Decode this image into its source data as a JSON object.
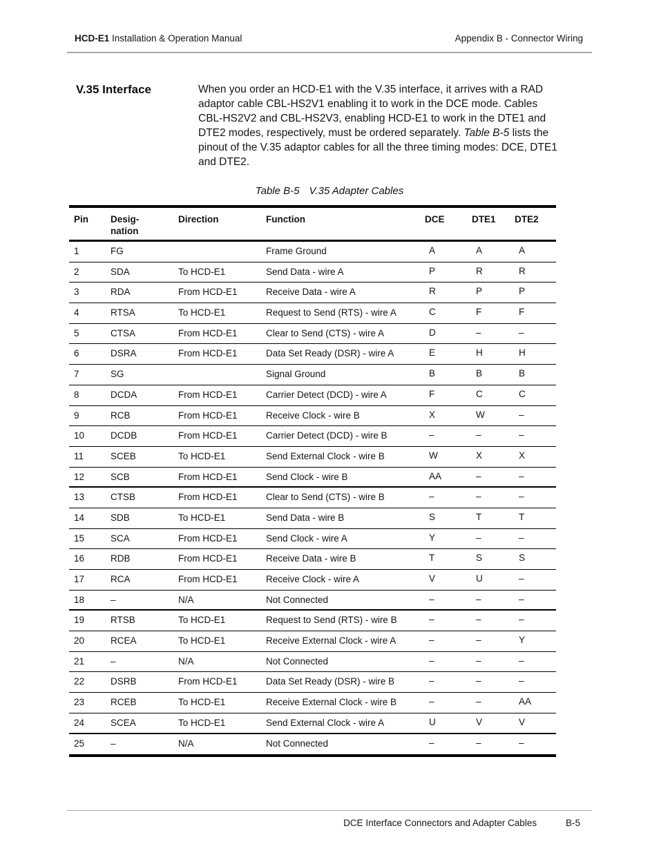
{
  "header": {
    "manual_title_bold": "HCD-E1",
    "manual_title_rest": " Installation & Operation Manual",
    "appendix_title": "Appendix B - Connector Wiring"
  },
  "section": {
    "title": "V.35 Interface",
    "paragraph_lines": [
      [
        {
          "text": "When you order an HCD-E1 with the V.35 interface, it arrives with a RAD"
        }
      ],
      [
        {
          "text": "adaptor cable CBL-HS2V1 enabling it to work in the DCE mode. Cables"
        }
      ],
      [
        {
          "text": "CBL-HS2V2 and CBL-HS2V3, enabling HCD-E1 to work in the DTE1 and"
        }
      ],
      [
        {
          "text": "DTE2 modes, respectively, must be ordered separately. "
        },
        {
          "text": "Table B-5",
          "italic": true
        },
        {
          "text": " lists the"
        }
      ],
      [
        {
          "text": "pinout of the V.35 adaptor cables for all the three timing modes: DCE, DTE1"
        }
      ],
      [
        {
          "text": "and DTE2."
        }
      ]
    ]
  },
  "table": {
    "caption_label": "Table B-5",
    "caption_title": "V.35 Adapter Cables",
    "columns": [
      "Pin",
      "Desig-\nnation",
      "Direction",
      "Function",
      "DCE",
      "DTE1",
      "DTE2"
    ],
    "rows": [
      {
        "pin": "1",
        "designation": "FG",
        "direction": "",
        "function": "Frame Ground",
        "dce": "A",
        "dte1": "A",
        "dte2": "A"
      },
      {
        "pin": "2",
        "designation": "SDA",
        "direction": "To HCD-E1",
        "function": "Send Data - wire A",
        "dce": "P",
        "dte1": "R",
        "dte2": "R"
      },
      {
        "pin": "3",
        "designation": "RDA",
        "direction": "From HCD-E1",
        "function": "Receive Data - wire A",
        "dce": "R",
        "dte1": "P",
        "dte2": "P"
      },
      {
        "pin": "4",
        "designation": "RTSA",
        "direction": "To HCD-E1",
        "function": "Request to Send (RTS) - wire A",
        "dce": "C",
        "dte1": "F",
        "dte2": "F"
      },
      {
        "pin": "5",
        "designation": "CTSA",
        "direction": "From HCD-E1",
        "function": "Clear to Send (CTS) - wire A",
        "dce": "D",
        "dte1": "–",
        "dte2": "–"
      },
      {
        "pin": "6",
        "designation": "DSRA",
        "direction": "From HCD-E1",
        "function": "Data Set Ready (DSR) - wire A",
        "dce": "E",
        "dte1": "H",
        "dte2": "H"
      },
      {
        "pin": "7",
        "designation": "SG",
        "direction": "",
        "function": "Signal Ground",
        "dce": "B",
        "dte1": "B",
        "dte2": "B"
      },
      {
        "pin": "8",
        "designation": "DCDA",
        "direction": "From HCD-E1",
        "function": "Carrier Detect (DCD) - wire A",
        "dce": "F",
        "dte1": "C",
        "dte2": "C"
      },
      {
        "pin": "9",
        "designation": "RCB",
        "direction": "From HCD-E1",
        "function": "Receive Clock - wire B",
        "dce": "X",
        "dte1": "W",
        "dte2": "–"
      },
      {
        "pin": "10",
        "designation": "DCDB",
        "direction": "From HCD-E1",
        "function": "Carrier Detect (DCD) - wire B",
        "dce": "–",
        "dte1": "–",
        "dte2": "–"
      },
      {
        "pin": "11",
        "designation": "SCEB",
        "direction": "To HCD-E1",
        "function": "Send External Clock - wire B",
        "dce": "W",
        "dte1": "X",
        "dte2": "X"
      },
      {
        "pin": "12",
        "designation": "SCB",
        "direction": "From HCD-E1",
        "function": "Send Clock - wire B",
        "dce": "AA",
        "dte1": "–",
        "dte2": "–",
        "group_end": true
      },
      {
        "pin": "13",
        "designation": "CTSB",
        "direction": "From HCD-E1",
        "function": "Clear to Send (CTS) - wire B",
        "dce": "–",
        "dte1": "–",
        "dte2": "–"
      },
      {
        "pin": "14",
        "designation": "SDB",
        "direction": "To HCD-E1",
        "function": "Send Data - wire B",
        "dce": "S",
        "dte1": "T",
        "dte2": "T"
      },
      {
        "pin": "15",
        "designation": "SCA",
        "direction": "From HCD-E1",
        "function": "Send Clock - wire A",
        "dce": "Y",
        "dte1": "–",
        "dte2": "–"
      },
      {
        "pin": "16",
        "designation": "RDB",
        "direction": "From HCD-E1",
        "function": "Receive Data - wire B",
        "dce": "T",
        "dte1": "S",
        "dte2": "S"
      },
      {
        "pin": "17",
        "designation": "RCA",
        "direction": "From HCD-E1",
        "function": "Receive Clock - wire A",
        "dce": "V",
        "dte1": "U",
        "dte2": "–"
      },
      {
        "pin": "18",
        "designation": "–",
        "direction": "N/A",
        "function": "Not Connected",
        "dce": "–",
        "dte1": "–",
        "dte2": "–",
        "group_end": true
      },
      {
        "pin": "19",
        "designation": "RTSB",
        "direction": "To HCD-E1",
        "function": "Request to Send (RTS) - wire B",
        "dce": "–",
        "dte1": "–",
        "dte2": "–"
      },
      {
        "pin": "20",
        "designation": "RCEA",
        "direction": "To HCD-E1",
        "function": "Receive External Clock - wire A",
        "dce": "–",
        "dte1": "–",
        "dte2": "Y"
      },
      {
        "pin": "21",
        "designation": "–",
        "direction": "N/A",
        "function": "Not Connected",
        "dce": "–",
        "dte1": "–",
        "dte2": "–"
      },
      {
        "pin": "22",
        "designation": "DSRB",
        "direction": "From HCD-E1",
        "function": "Data Set Ready (DSR) - wire B",
        "dce": "–",
        "dte1": "–",
        "dte2": "–"
      },
      {
        "pin": "23",
        "designation": "RCEB",
        "direction": "To HCD-E1",
        "function": "Receive External Clock - wire B",
        "dce": "–",
        "dte1": "–",
        "dte2": "AA"
      },
      {
        "pin": "24",
        "designation": "SCEA",
        "direction": "To HCD-E1",
        "function": "Send External Clock - wire A",
        "dce": "U",
        "dte1": "V",
        "dte2": "V",
        "group_end": true
      },
      {
        "pin": "25",
        "designation": "–",
        "direction": "N/A",
        "function": "Not Connected",
        "dce": "–",
        "dte1": "–",
        "dte2": "–"
      }
    ]
  },
  "footer": {
    "text": "DCE Interface Connectors and Adapter Cables",
    "page_number": "B-5"
  }
}
